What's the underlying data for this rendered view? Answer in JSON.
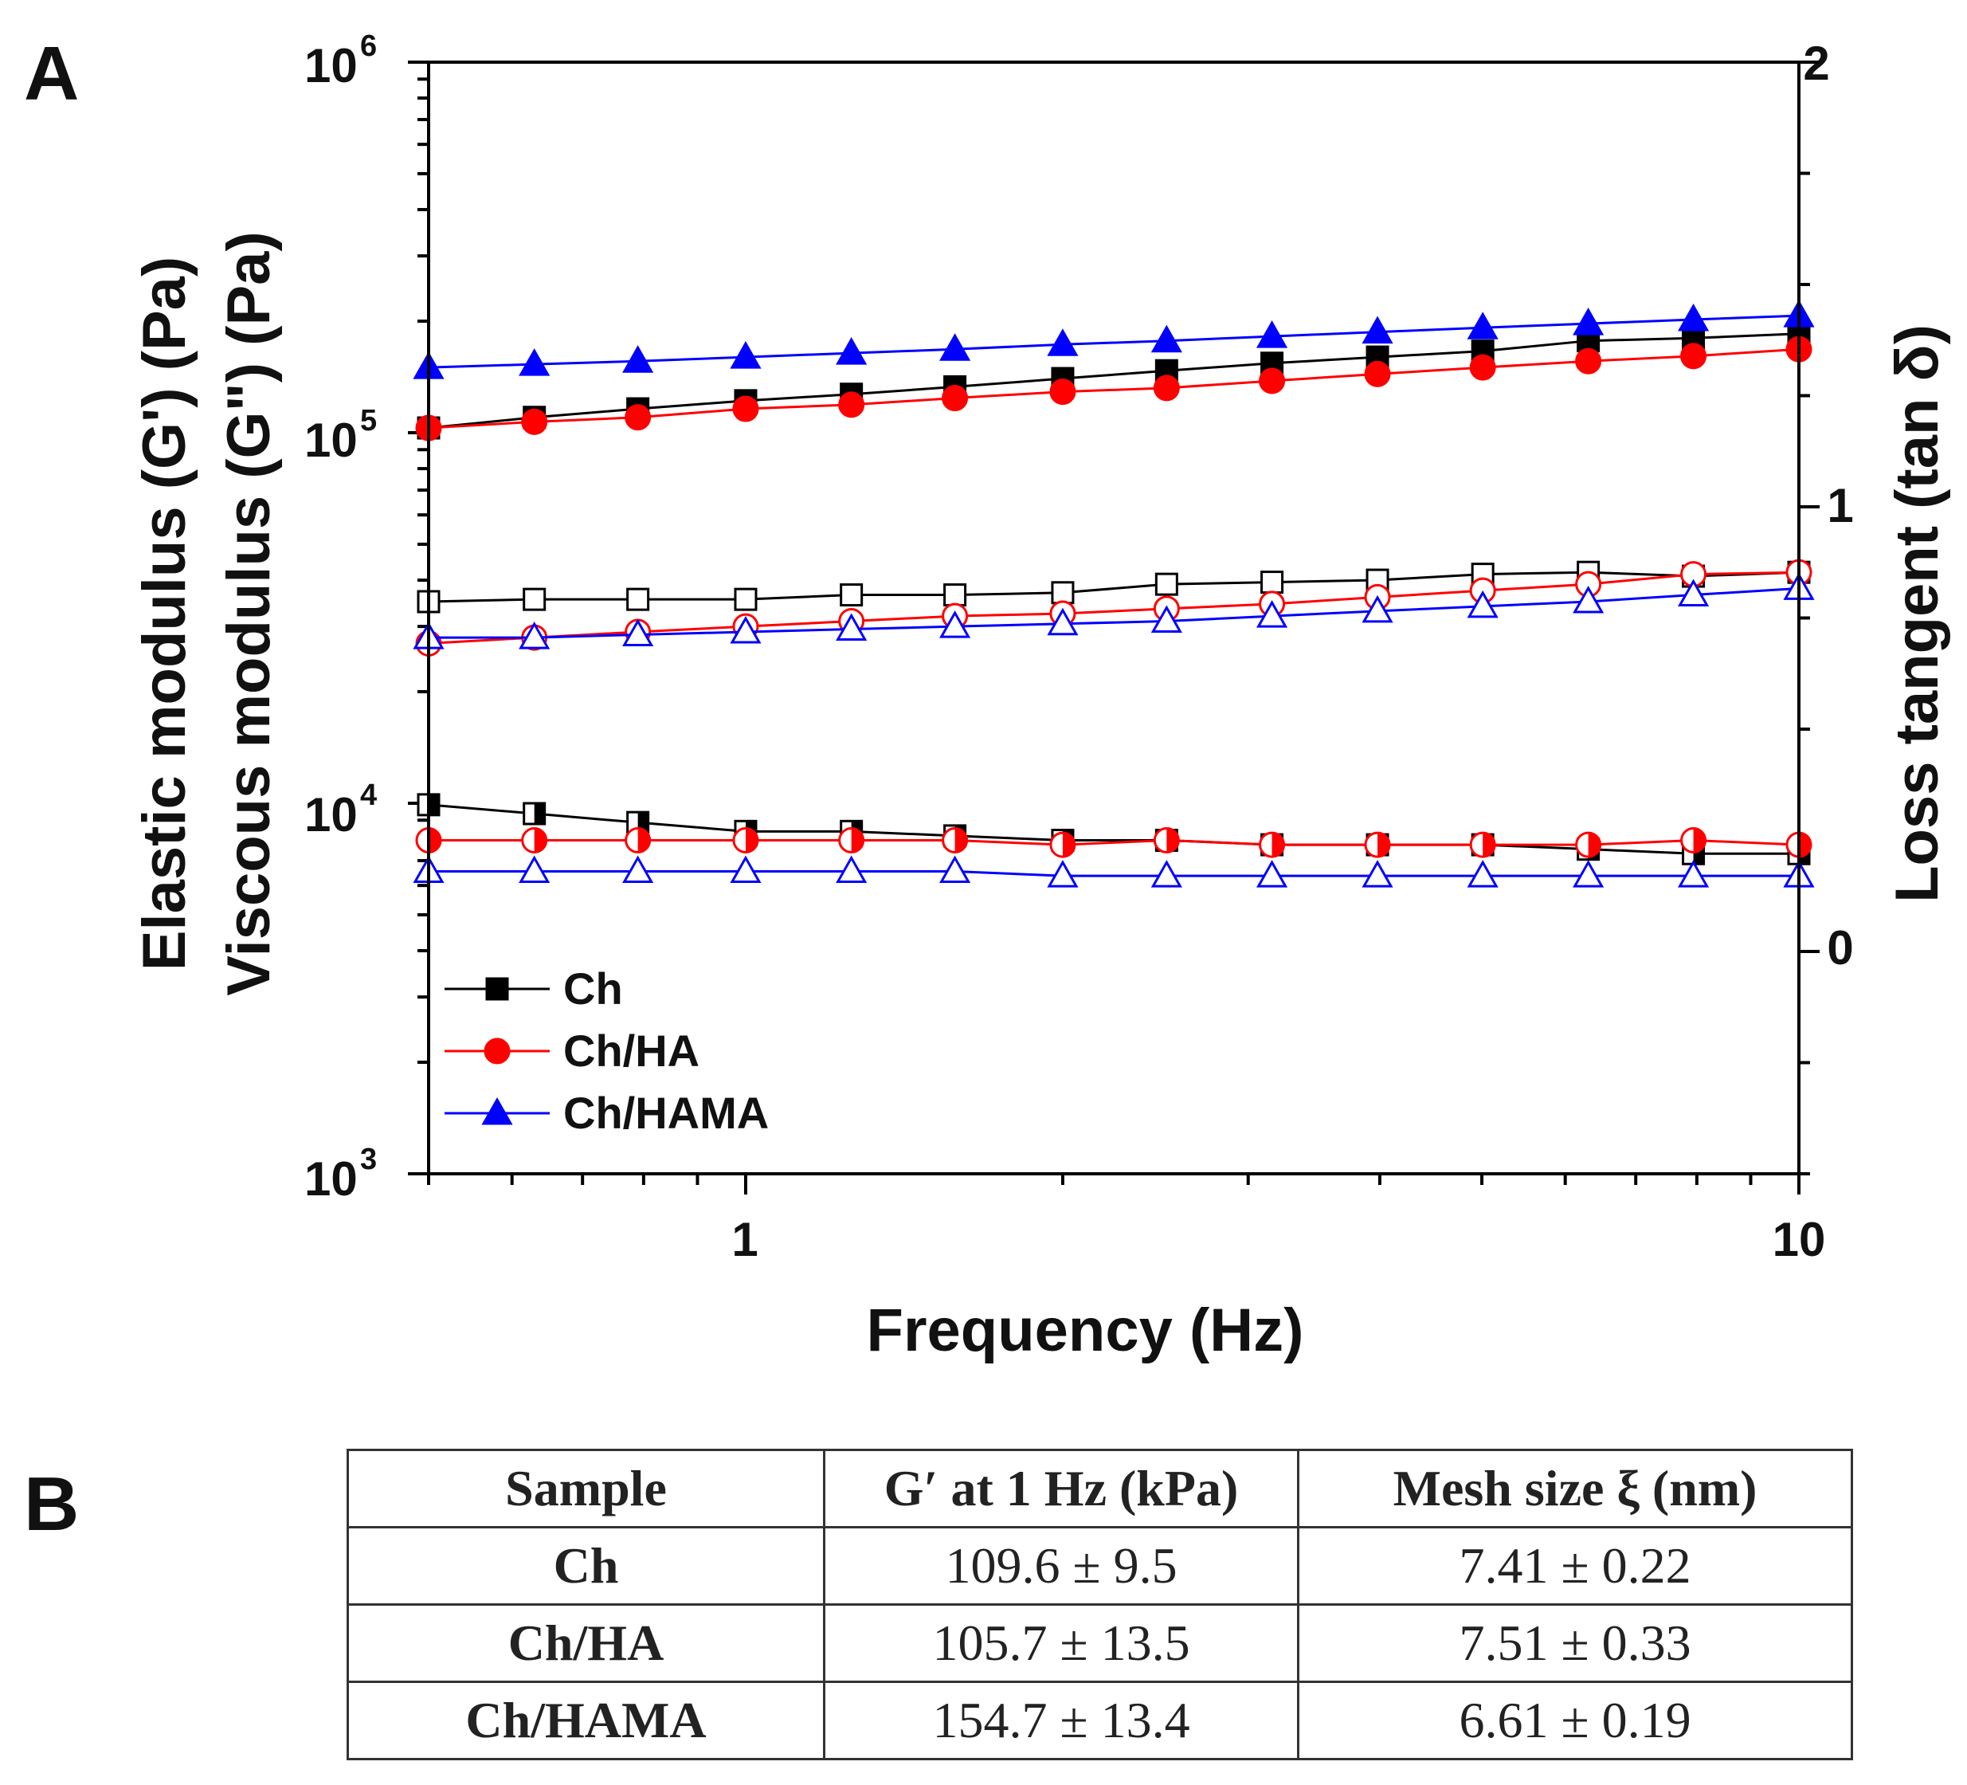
{
  "panel_a_label": "A",
  "panel_b_label": "B",
  "chart_data": {
    "type": "line",
    "title": "",
    "xlabel": "Frequency (Hz)",
    "ylabel_lines": [
      "Elastic modulus (G') (Pa)",
      "Viscous modulus (G\") (Pa)"
    ],
    "y2label": "Loss tangent (tan δ)",
    "xscale": "log",
    "yscale": "log",
    "xlim": [
      0.5,
      10
    ],
    "ylim": [
      1000,
      1000000
    ],
    "y2lim": [
      -0.5,
      2
    ],
    "x_tick_labels": [
      "1",
      "10"
    ],
    "y_ticks": [
      {
        "base": "10",
        "exp": "6"
      },
      {
        "base": "10",
        "exp": "5"
      },
      {
        "base": "10",
        "exp": "4"
      },
      {
        "base": "10",
        "exp": "3"
      }
    ],
    "y2_tick_labels": [
      "2",
      "1",
      "0"
    ],
    "legend_position": "bottom-left",
    "x": [
      0.5,
      0.63,
      0.79,
      1.0,
      1.26,
      1.58,
      2.0,
      2.51,
      3.16,
      3.98,
      5.01,
      6.31,
      7.94,
      10.0
    ],
    "series": [
      {
        "name": "Ch",
        "color": "#000000",
        "marker": "square",
        "quantity": "G'",
        "axis": "left",
        "filled": true,
        "values": [
          103000,
          110000,
          116000,
          122000,
          127000,
          133000,
          140000,
          147000,
          154000,
          160000,
          166000,
          177000,
          180000,
          185000
        ]
      },
      {
        "name": "Ch/HA",
        "color": "#ff0000",
        "marker": "circle",
        "quantity": "G'",
        "axis": "left",
        "filled": true,
        "values": [
          103000,
          107000,
          110000,
          116000,
          119000,
          124000,
          129000,
          132000,
          138000,
          144000,
          150000,
          156000,
          161000,
          168000
        ]
      },
      {
        "name": "Ch/HAMA",
        "color": "#0000ff",
        "marker": "triangle",
        "quantity": "G'",
        "axis": "left",
        "filled": true,
        "values": [
          150000,
          153000,
          156000,
          160000,
          164000,
          168000,
          173000,
          177000,
          182000,
          187000,
          192000,
          197000,
          202000,
          207000
        ]
      },
      {
        "name": "Ch",
        "color": "#000000",
        "marker": "square",
        "quantity": "G\"",
        "axis": "left",
        "filled": false,
        "values": [
          35000,
          35500,
          35500,
          35500,
          36500,
          36500,
          37000,
          39000,
          39500,
          40000,
          41500,
          42000,
          41000,
          42000
        ]
      },
      {
        "name": "Ch/HA",
        "color": "#ff0000",
        "marker": "circle",
        "quantity": "G\"",
        "axis": "left",
        "filled": false,
        "values": [
          27000,
          28000,
          29000,
          30000,
          31000,
          32000,
          32500,
          33500,
          34500,
          36000,
          37500,
          39000,
          41500,
          42000
        ]
      },
      {
        "name": "Ch/HAMA",
        "color": "#0000ff",
        "marker": "triangle",
        "quantity": "G\"",
        "axis": "left",
        "filled": false,
        "values": [
          28000,
          28000,
          28500,
          29000,
          29500,
          30000,
          30500,
          31000,
          32000,
          33000,
          34000,
          35000,
          36500,
          38000
        ]
      },
      {
        "name": "Ch",
        "color": "#000000",
        "marker": "square",
        "quantity": "tan δ",
        "axis": "right",
        "filled": "half",
        "values": [
          0.33,
          0.31,
          0.29,
          0.27,
          0.27,
          0.26,
          0.25,
          0.25,
          0.24,
          0.24,
          0.24,
          0.23,
          0.22,
          0.22
        ]
      },
      {
        "name": "Ch/HA",
        "color": "#ff0000",
        "marker": "circle",
        "quantity": "tan δ",
        "axis": "right",
        "filled": "half",
        "values": [
          0.25,
          0.25,
          0.25,
          0.25,
          0.25,
          0.25,
          0.24,
          0.25,
          0.24,
          0.24,
          0.24,
          0.24,
          0.25,
          0.24
        ]
      },
      {
        "name": "Ch/HAMA",
        "color": "#0000ff",
        "marker": "triangle",
        "quantity": "tan δ",
        "axis": "right",
        "filled": false,
        "values": [
          0.18,
          0.18,
          0.18,
          0.18,
          0.18,
          0.18,
          0.17,
          0.17,
          0.17,
          0.17,
          0.17,
          0.17,
          0.17,
          0.17
        ]
      }
    ]
  },
  "table": {
    "headers": [
      "Sample",
      "G′ at 1 Hz (kPa)",
      "Mesh size ξ (nm)"
    ],
    "rows": [
      [
        "Ch",
        "109.6 ± 9.5",
        "7.41 ± 0.22"
      ],
      [
        "Ch/HA",
        "105.7 ± 13.5",
        "7.51 ± 0.33"
      ],
      [
        "Ch/HAMA",
        "154.7 ± 13.4",
        "6.61 ± 0.19"
      ]
    ]
  }
}
